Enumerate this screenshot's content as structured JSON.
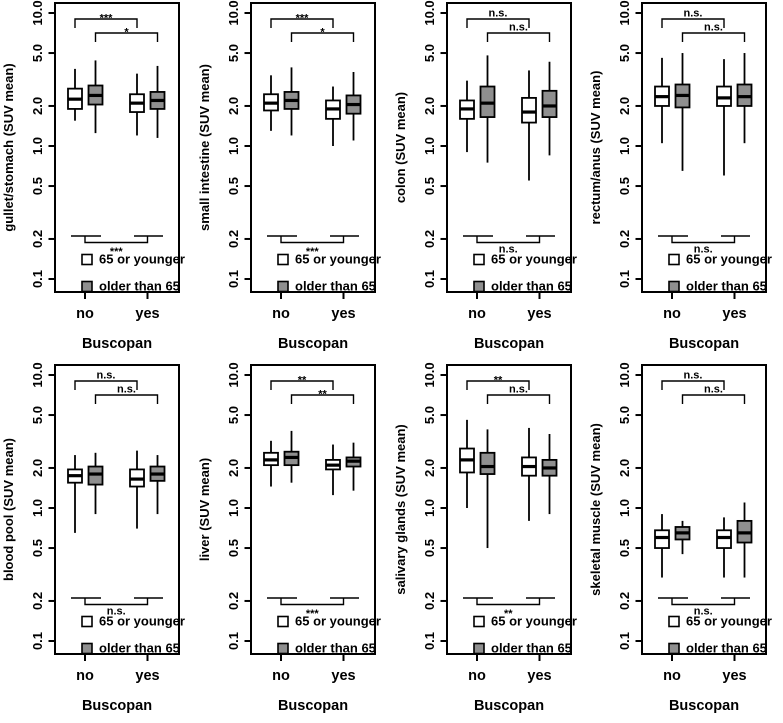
{
  "axes": {
    "y_tick_labels": [
      "10.0",
      "5.0",
      "2.0",
      "1.0",
      "0.5",
      "0.2",
      "0.1"
    ],
    "y_tick_values": [
      10,
      5,
      2,
      1,
      0.5,
      0.2,
      0.1
    ],
    "x_categories": [
      "no",
      "yes"
    ],
    "x_label": "Buscopan"
  },
  "legend": {
    "items": [
      {
        "label": "65 or younger",
        "fill": "#ffffff"
      },
      {
        "label": "older than 65",
        "fill": "#8f8f8f"
      }
    ]
  },
  "colors": {
    "box_white": "#ffffff",
    "box_gray": "#8f8f8f",
    "line": "#000000"
  },
  "chart_data": [
    {
      "type": "boxplot",
      "ylabel": "gullet/stomach (SUV mean)",
      "xlabel": "Buscopan",
      "yscale": "log",
      "ylim": [
        0.08,
        12
      ],
      "y_ticks": [
        10,
        5,
        2,
        1,
        0.5,
        0.2,
        0.1
      ],
      "groups": [
        "no",
        "yes"
      ],
      "series": [
        {
          "name": "65 or younger",
          "group": "no",
          "whisker_low": 1.55,
          "q1": 1.9,
          "median": 2.25,
          "q3": 2.7,
          "whisker_high": 3.8
        },
        {
          "name": "older than 65",
          "group": "no",
          "whisker_low": 1.25,
          "q1": 2.05,
          "median": 2.4,
          "q3": 2.85,
          "whisker_high": 4.4
        },
        {
          "name": "65 or younger",
          "group": "yes",
          "whisker_low": 1.2,
          "q1": 1.8,
          "median": 2.1,
          "q3": 2.45,
          "whisker_high": 3.5
        },
        {
          "name": "older than 65",
          "group": "yes",
          "whisker_low": 1.15,
          "q1": 1.9,
          "median": 2.2,
          "q3": 2.55,
          "whisker_high": 4.0
        }
      ],
      "significance": {
        "top_young": "***",
        "top_old": "*",
        "bottom_pooled": "***"
      }
    },
    {
      "type": "boxplot",
      "ylabel": "small intestine (SUV mean)",
      "xlabel": "Buscopan",
      "yscale": "log",
      "ylim": [
        0.08,
        12
      ],
      "y_ticks": [
        10,
        5,
        2,
        1,
        0.5,
        0.2,
        0.1
      ],
      "groups": [
        "no",
        "yes"
      ],
      "series": [
        {
          "name": "65 or younger",
          "group": "no",
          "whisker_low": 1.3,
          "q1": 1.85,
          "median": 2.1,
          "q3": 2.45,
          "whisker_high": 3.4
        },
        {
          "name": "older than 65",
          "group": "no",
          "whisker_low": 1.2,
          "q1": 1.9,
          "median": 2.2,
          "q3": 2.55,
          "whisker_high": 3.9
        },
        {
          "name": "65 or younger",
          "group": "yes",
          "whisker_low": 1.0,
          "q1": 1.6,
          "median": 1.9,
          "q3": 2.2,
          "whisker_high": 2.8
        },
        {
          "name": "older than 65",
          "group": "yes",
          "whisker_low": 1.1,
          "q1": 1.75,
          "median": 2.05,
          "q3": 2.4,
          "whisker_high": 3.6
        }
      ],
      "significance": {
        "top_young": "***",
        "top_old": "*",
        "bottom_pooled": "***"
      }
    },
    {
      "type": "boxplot",
      "ylabel": "colon (SUV mean)",
      "xlabel": "Buscopan",
      "yscale": "log",
      "ylim": [
        0.08,
        12
      ],
      "y_ticks": [
        10,
        5,
        2,
        1,
        0.5,
        0.2,
        0.1
      ],
      "groups": [
        "no",
        "yes"
      ],
      "series": [
        {
          "name": "65 or younger",
          "group": "no",
          "whisker_low": 0.9,
          "q1": 1.6,
          "median": 1.9,
          "q3": 2.2,
          "whisker_high": 3.1
        },
        {
          "name": "older than 65",
          "group": "no",
          "whisker_low": 0.75,
          "q1": 1.65,
          "median": 2.1,
          "q3": 2.8,
          "whisker_high": 4.8
        },
        {
          "name": "65 or younger",
          "group": "yes",
          "whisker_low": 0.55,
          "q1": 1.5,
          "median": 1.8,
          "q3": 2.3,
          "whisker_high": 3.7
        },
        {
          "name": "older than 65",
          "group": "yes",
          "whisker_low": 0.85,
          "q1": 1.65,
          "median": 2.0,
          "q3": 2.6,
          "whisker_high": 4.3
        }
      ],
      "significance": {
        "top_young": "n.s.",
        "top_old": "n.s.",
        "bottom_pooled": "n.s."
      }
    },
    {
      "type": "boxplot",
      "ylabel": "rectum/anus (SUV mean)",
      "xlabel": "Buscopan",
      "yscale": "log",
      "ylim": [
        0.08,
        12
      ],
      "y_ticks": [
        10,
        5,
        2,
        1,
        0.5,
        0.2,
        0.1
      ],
      "groups": [
        "no",
        "yes"
      ],
      "series": [
        {
          "name": "65 or younger",
          "group": "no",
          "whisker_low": 1.05,
          "q1": 2.0,
          "median": 2.35,
          "q3": 2.8,
          "whisker_high": 4.6
        },
        {
          "name": "older than 65",
          "group": "no",
          "whisker_low": 0.65,
          "q1": 1.95,
          "median": 2.4,
          "q3": 2.9,
          "whisker_high": 5.0
        },
        {
          "name": "65 or younger",
          "group": "yes",
          "whisker_low": 0.6,
          "q1": 2.0,
          "median": 2.3,
          "q3": 2.8,
          "whisker_high": 4.5
        },
        {
          "name": "older than 65",
          "group": "yes",
          "whisker_low": 1.05,
          "q1": 2.0,
          "median": 2.35,
          "q3": 2.9,
          "whisker_high": 5.0
        }
      ],
      "significance": {
        "top_young": "n.s.",
        "top_old": "n.s.",
        "bottom_pooled": "n.s."
      }
    },
    {
      "type": "boxplot",
      "ylabel": "blood pool (SUV mean)",
      "xlabel": "Buscopan",
      "yscale": "log",
      "ylim": [
        0.08,
        12
      ],
      "y_ticks": [
        10,
        5,
        2,
        1,
        0.5,
        0.2,
        0.1
      ],
      "groups": [
        "no",
        "yes"
      ],
      "series": [
        {
          "name": "65 or younger",
          "group": "no",
          "whisker_low": 0.65,
          "q1": 1.55,
          "median": 1.75,
          "q3": 1.95,
          "whisker_high": 2.5
        },
        {
          "name": "older than 65",
          "group": "no",
          "whisker_low": 0.9,
          "q1": 1.5,
          "median": 1.8,
          "q3": 2.05,
          "whisker_high": 2.6
        },
        {
          "name": "65 or younger",
          "group": "yes",
          "whisker_low": 0.7,
          "q1": 1.45,
          "median": 1.65,
          "q3": 1.95,
          "whisker_high": 2.7
        },
        {
          "name": "older than 65",
          "group": "yes",
          "whisker_low": 0.9,
          "q1": 1.6,
          "median": 1.8,
          "q3": 2.05,
          "whisker_high": 2.5
        }
      ],
      "significance": {
        "top_young": "n.s.",
        "top_old": "n.s.",
        "bottom_pooled": "n.s."
      }
    },
    {
      "type": "boxplot",
      "ylabel": "liver (SUV mean)",
      "xlabel": "Buscopan",
      "yscale": "log",
      "ylim": [
        0.08,
        12
      ],
      "y_ticks": [
        10,
        5,
        2,
        1,
        0.5,
        0.2,
        0.1
      ],
      "groups": [
        "no",
        "yes"
      ],
      "series": [
        {
          "name": "65 or younger",
          "group": "no",
          "whisker_low": 1.45,
          "q1": 2.1,
          "median": 2.3,
          "q3": 2.6,
          "whisker_high": 3.2
        },
        {
          "name": "older than 65",
          "group": "no",
          "whisker_low": 1.55,
          "q1": 2.1,
          "median": 2.4,
          "q3": 2.65,
          "whisker_high": 3.8
        },
        {
          "name": "65 or younger",
          "group": "yes",
          "whisker_low": 1.25,
          "q1": 1.95,
          "median": 2.1,
          "q3": 2.3,
          "whisker_high": 3.0
        },
        {
          "name": "older than 65",
          "group": "yes",
          "whisker_low": 1.35,
          "q1": 2.05,
          "median": 2.25,
          "q3": 2.4,
          "whisker_high": 3.1
        }
      ],
      "significance": {
        "top_young": "**",
        "top_old": "**",
        "bottom_pooled": "***"
      }
    },
    {
      "type": "boxplot",
      "ylabel": "salivary glands (SUV mean)",
      "xlabel": "Buscopan",
      "yscale": "log",
      "ylim": [
        0.08,
        12
      ],
      "y_ticks": [
        10,
        5,
        2,
        1,
        0.5,
        0.2,
        0.1
      ],
      "groups": [
        "no",
        "yes"
      ],
      "series": [
        {
          "name": "65 or younger",
          "group": "no",
          "whisker_low": 1.0,
          "q1": 1.85,
          "median": 2.3,
          "q3": 2.8,
          "whisker_high": 4.6
        },
        {
          "name": "older than 65",
          "group": "no",
          "whisker_low": 0.5,
          "q1": 1.8,
          "median": 2.05,
          "q3": 2.6,
          "whisker_high": 3.9
        },
        {
          "name": "65 or younger",
          "group": "yes",
          "whisker_low": 0.8,
          "q1": 1.75,
          "median": 2.05,
          "q3": 2.4,
          "whisker_high": 4.0
        },
        {
          "name": "older than 65",
          "group": "yes",
          "whisker_low": 0.9,
          "q1": 1.75,
          "median": 2.0,
          "q3": 2.3,
          "whisker_high": 3.6
        }
      ],
      "significance": {
        "top_young": "**",
        "top_old": "n.s.",
        "bottom_pooled": "**"
      }
    },
    {
      "type": "boxplot",
      "ylabel": "skeletal muscle (SUV mean)",
      "xlabel": "Buscopan",
      "yscale": "log",
      "ylim": [
        0.08,
        12
      ],
      "y_ticks": [
        10,
        5,
        2,
        1,
        0.5,
        0.2,
        0.1
      ],
      "groups": [
        "no",
        "yes"
      ],
      "series": [
        {
          "name": "65 or younger",
          "group": "no",
          "whisker_low": 0.3,
          "q1": 0.5,
          "median": 0.6,
          "q3": 0.68,
          "whisker_high": 0.9
        },
        {
          "name": "older than 65",
          "group": "no",
          "whisker_low": 0.45,
          "q1": 0.58,
          "median": 0.65,
          "q3": 0.72,
          "whisker_high": 0.8
        },
        {
          "name": "65 or younger",
          "group": "yes",
          "whisker_low": 0.3,
          "q1": 0.5,
          "median": 0.6,
          "q3": 0.68,
          "whisker_high": 0.85
        },
        {
          "name": "older than 65",
          "group": "yes",
          "whisker_low": 0.3,
          "q1": 0.55,
          "median": 0.65,
          "q3": 0.8,
          "whisker_high": 1.1
        }
      ],
      "significance": {
        "top_young": "n.s.",
        "top_old": "n.s.",
        "bottom_pooled": "n.s."
      }
    }
  ]
}
